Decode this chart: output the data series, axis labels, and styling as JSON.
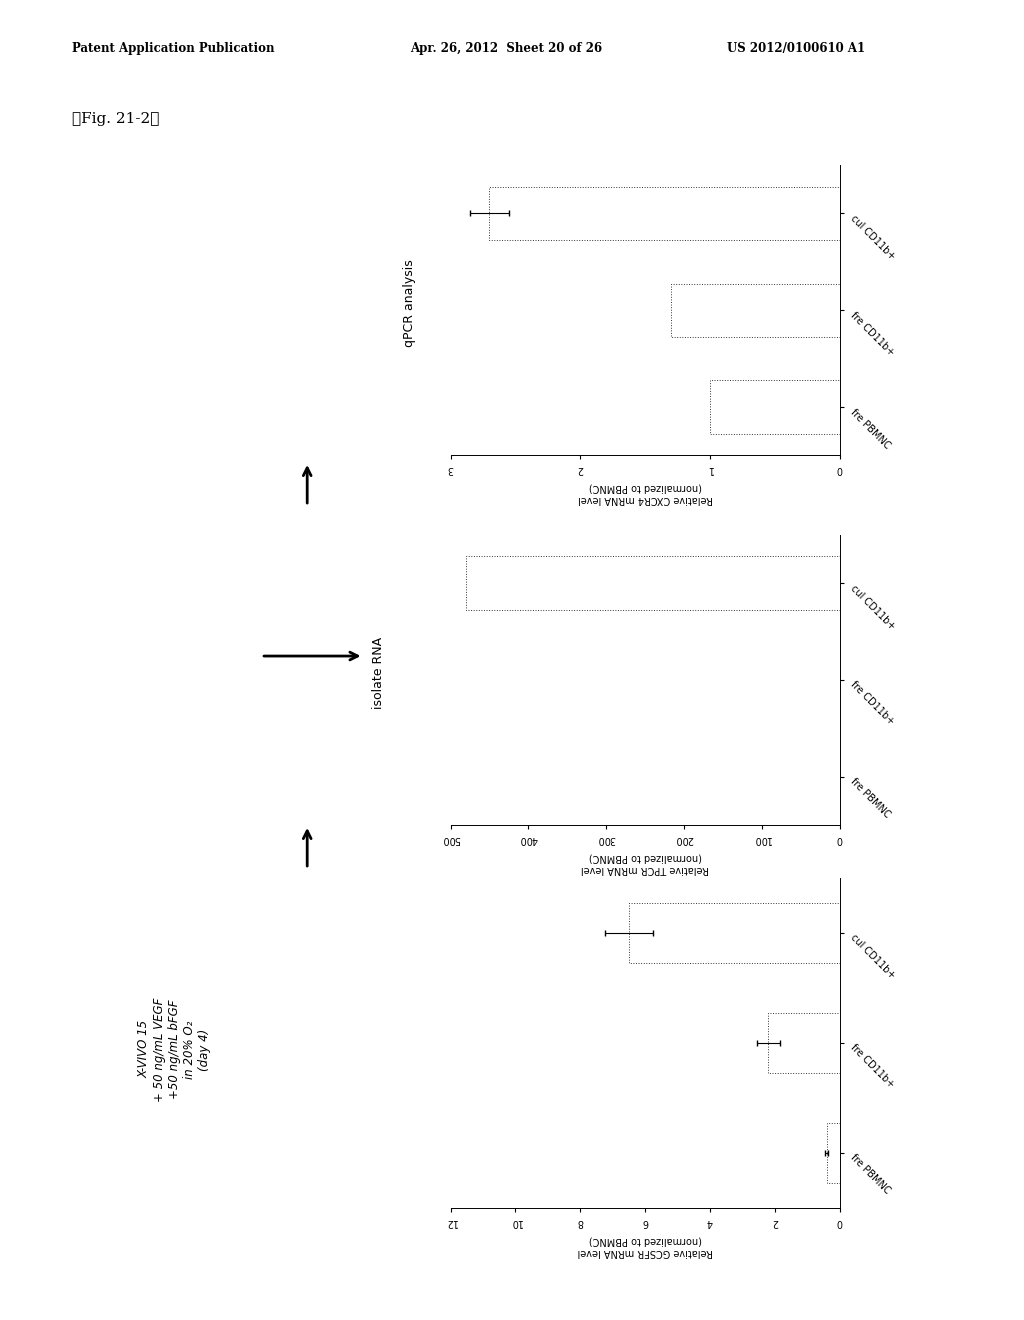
{
  "header_left": "Patent Application Publication",
  "header_mid": "Apr. 26, 2012  Sheet 20 of 26",
  "header_right": "US 2012/0100610 A1",
  "fig_label": "【Fig. 21-2】",
  "charts": [
    {
      "ylabel_line1": "Relative CXCR4 mRNA level",
      "ylabel_line2": "(normalized to PBMNC)",
      "categories": [
        "fre PBMNC",
        "fre CD11b+",
        "cul CD11b+"
      ],
      "values": [
        1.0,
        1.3,
        2.7
      ],
      "errors": [
        0.0,
        0.0,
        0.15
      ],
      "xlim": [
        0,
        3
      ],
      "xticks": [
        0,
        1,
        2,
        3
      ],
      "xticklabels": [
        "0",
        "1",
        "2",
        "3"
      ]
    },
    {
      "ylabel_line1": "Relative TPCR mRNA level",
      "ylabel_line2": "(normalized to PBMNC)",
      "categories": [
        "fre PBMNC",
        "fre CD11b+",
        "cul CD11b+"
      ],
      "values": [
        0,
        0,
        480
      ],
      "errors": [
        0,
        0,
        0
      ],
      "xlim": [
        0,
        500
      ],
      "xticks": [
        0,
        100,
        200,
        300,
        400,
        500
      ],
      "xticklabels": [
        "0",
        "100",
        "200",
        "300",
        "400",
        "500"
      ]
    },
    {
      "ylabel_line1": "Relative GCSFR mRNA level",
      "ylabel_line2": "(normalized to PBMNC)",
      "categories": [
        "fre PBMNC",
        "fre CD11b+",
        "cul CD11b+"
      ],
      "values": [
        0.4,
        2.2,
        6.5
      ],
      "errors": [
        0.05,
        0.35,
        0.75
      ],
      "xlim": [
        0,
        12
      ],
      "xticks": [
        0,
        2,
        4,
        6,
        8,
        10,
        12
      ],
      "xticklabels": [
        "0",
        "2",
        "4",
        "6",
        "8",
        "10",
        "12"
      ]
    }
  ],
  "condition_lines": [
    "X-VIVO 15",
    "+ 50 ng/mL VEGF",
    "+50 ng/mL bFGF",
    "in 20% O₂",
    "(day 4)"
  ],
  "label_isolate": "isolate RNA",
  "label_qpcr": "qPCR analysis",
  "background_color": "#ffffff",
  "bar_color": "#ffffff",
  "bar_edge": "#333333",
  "bar_linewidth": 0.7
}
